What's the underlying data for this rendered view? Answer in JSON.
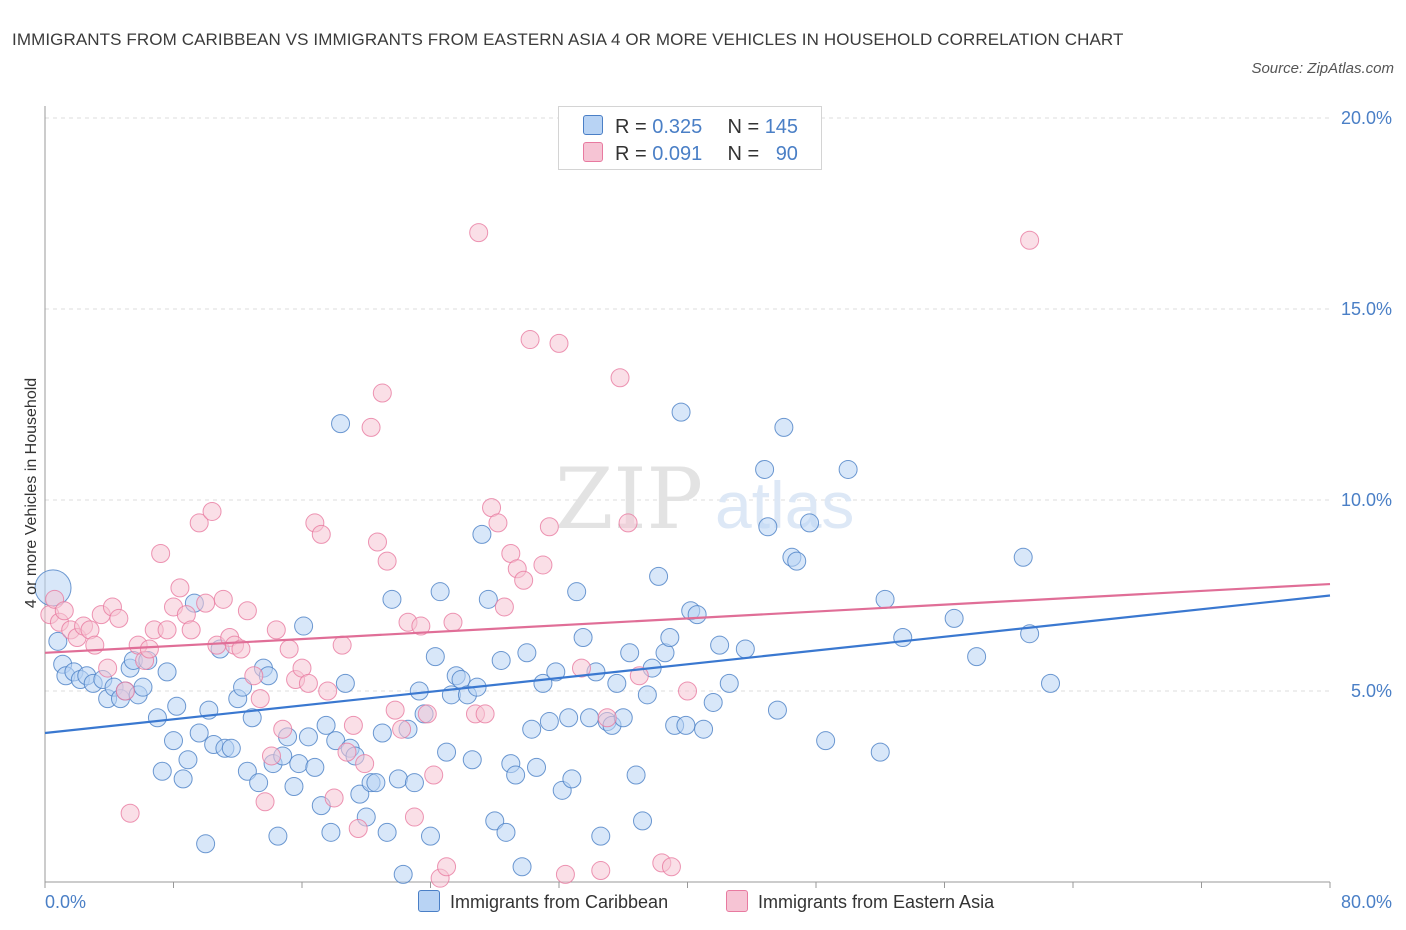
{
  "title": "IMMIGRANTS FROM CARIBBEAN VS IMMIGRANTS FROM EASTERN ASIA 4 OR MORE VEHICLES IN HOUSEHOLD CORRELATION CHART",
  "source": "Source: ZipAtlas.com",
  "watermark": {
    "zip": "ZIP",
    "atlas": "atlas"
  },
  "colors": {
    "blue": "#4a7fc6",
    "blue_fill": "#b8d3f4",
    "blue_line": "#3a78d0",
    "pink": "#e87aa0",
    "pink_fill": "#f6c4d4",
    "pink_line": "#e06e97",
    "grid": "#dcdcdc"
  },
  "legend_top": {
    "rows": [
      {
        "r_label": "R =",
        "r_value": "0.325",
        "n_label": "N =",
        "n_value": "145"
      },
      {
        "r_label": "R =",
        "r_value": "0.091",
        "n_label": "N =",
        "n_value": "90"
      }
    ]
  },
  "legend_bottom": [
    "Immigrants from Caribbean",
    "Immigrants from Eastern Asia"
  ],
  "chart_data": {
    "type": "scatter",
    "ylabel": "4 or more Vehicles in Household",
    "xlim": [
      0,
      80
    ],
    "ylim": [
      0,
      20
    ],
    "x_tick_labels": [
      "0.0%",
      "80.0%"
    ],
    "y_ticks": [
      5,
      10,
      15,
      20
    ],
    "y_tick_labels": [
      "5.0%",
      "10.0%",
      "15.0%",
      "20.0%"
    ],
    "grid": "horizontal dashed",
    "series": [
      {
        "name": "Immigrants from Caribbean",
        "R": 0.325,
        "N": 145,
        "trend": {
          "x": [
            0,
            80
          ],
          "y": [
            3.9,
            7.5
          ]
        },
        "points": [
          [
            0.5,
            7.7
          ],
          [
            0.8,
            6.3
          ],
          [
            1.1,
            5.7
          ],
          [
            1.3,
            5.4
          ],
          [
            1.8,
            5.5
          ],
          [
            2.2,
            5.3
          ],
          [
            2.6,
            5.4
          ],
          [
            3.0,
            5.2
          ],
          [
            3.6,
            5.3
          ],
          [
            3.9,
            4.8
          ],
          [
            4.3,
            5.1
          ],
          [
            4.7,
            4.8
          ],
          [
            5.0,
            5.0
          ],
          [
            5.3,
            5.6
          ],
          [
            5.5,
            5.8
          ],
          [
            5.8,
            4.9
          ],
          [
            6.1,
            5.1
          ],
          [
            6.4,
            5.8
          ],
          [
            7.0,
            4.3
          ],
          [
            7.3,
            2.9
          ],
          [
            7.6,
            5.5
          ],
          [
            8.0,
            3.7
          ],
          [
            8.2,
            4.6
          ],
          [
            8.6,
            2.7
          ],
          [
            8.9,
            3.2
          ],
          [
            9.3,
            7.3
          ],
          [
            9.6,
            3.9
          ],
          [
            10.0,
            1.0
          ],
          [
            10.2,
            4.5
          ],
          [
            10.5,
            3.6
          ],
          [
            10.9,
            6.1
          ],
          [
            11.2,
            3.5
          ],
          [
            11.6,
            3.5
          ],
          [
            12.0,
            4.8
          ],
          [
            12.3,
            5.1
          ],
          [
            12.6,
            2.9
          ],
          [
            12.9,
            4.3
          ],
          [
            13.3,
            2.6
          ],
          [
            13.6,
            5.6
          ],
          [
            13.9,
            5.4
          ],
          [
            14.2,
            3.1
          ],
          [
            14.5,
            1.2
          ],
          [
            14.8,
            3.3
          ],
          [
            15.1,
            3.8
          ],
          [
            15.5,
            2.5
          ],
          [
            15.8,
            3.1
          ],
          [
            16.1,
            6.7
          ],
          [
            16.4,
            3.8
          ],
          [
            16.8,
            3.0
          ],
          [
            17.2,
            2.0
          ],
          [
            17.5,
            4.1
          ],
          [
            17.8,
            1.3
          ],
          [
            18.1,
            3.7
          ],
          [
            18.4,
            12.0
          ],
          [
            18.7,
            5.2
          ],
          [
            19.0,
            3.5
          ],
          [
            19.3,
            3.3
          ],
          [
            19.6,
            2.3
          ],
          [
            20.0,
            1.7
          ],
          [
            20.3,
            2.6
          ],
          [
            20.6,
            2.6
          ],
          [
            21.0,
            3.9
          ],
          [
            21.3,
            1.3
          ],
          [
            21.6,
            7.4
          ],
          [
            22.0,
            2.7
          ],
          [
            22.3,
            0.2
          ],
          [
            22.6,
            4.0
          ],
          [
            23.0,
            2.6
          ],
          [
            23.3,
            5.0
          ],
          [
            23.6,
            4.4
          ],
          [
            24.0,
            1.2
          ],
          [
            24.3,
            5.9
          ],
          [
            24.6,
            7.6
          ],
          [
            25.0,
            3.4
          ],
          [
            25.3,
            4.9
          ],
          [
            25.6,
            5.4
          ],
          [
            25.9,
            5.3
          ],
          [
            26.3,
            4.9
          ],
          [
            26.6,
            3.2
          ],
          [
            26.9,
            5.1
          ],
          [
            27.2,
            9.1
          ],
          [
            27.6,
            7.4
          ],
          [
            28.0,
            1.6
          ],
          [
            28.4,
            5.8
          ],
          [
            28.7,
            1.3
          ],
          [
            29.0,
            3.1
          ],
          [
            29.3,
            2.8
          ],
          [
            29.7,
            0.4
          ],
          [
            30.0,
            6.0
          ],
          [
            30.3,
            4.0
          ],
          [
            30.6,
            3.0
          ],
          [
            31.0,
            5.2
          ],
          [
            31.4,
            4.2
          ],
          [
            31.8,
            5.5
          ],
          [
            32.2,
            2.4
          ],
          [
            32.6,
            4.3
          ],
          [
            32.8,
            2.7
          ],
          [
            33.1,
            7.6
          ],
          [
            33.5,
            6.4
          ],
          [
            33.9,
            4.3
          ],
          [
            34.3,
            5.5
          ],
          [
            34.6,
            1.2
          ],
          [
            35.0,
            4.2
          ],
          [
            35.3,
            4.1
          ],
          [
            35.6,
            5.2
          ],
          [
            36.0,
            4.3
          ],
          [
            36.4,
            6.0
          ],
          [
            36.8,
            2.8
          ],
          [
            37.2,
            1.6
          ],
          [
            37.5,
            4.9
          ],
          [
            37.8,
            5.6
          ],
          [
            38.2,
            8.0
          ],
          [
            38.6,
            6.0
          ],
          [
            38.9,
            6.4
          ],
          [
            39.2,
            4.1
          ],
          [
            39.6,
            12.3
          ],
          [
            39.9,
            4.1
          ],
          [
            40.2,
            7.1
          ],
          [
            40.6,
            7.0
          ],
          [
            41.0,
            4.0
          ],
          [
            41.6,
            4.7
          ],
          [
            42.0,
            6.2
          ],
          [
            42.6,
            5.2
          ],
          [
            43.6,
            6.1
          ],
          [
            44.8,
            10.8
          ],
          [
            45.0,
            9.3
          ],
          [
            45.6,
            4.5
          ],
          [
            46.0,
            11.9
          ],
          [
            46.5,
            8.5
          ],
          [
            46.8,
            8.4
          ],
          [
            47.6,
            9.4
          ],
          [
            48.6,
            3.7
          ],
          [
            50.0,
            10.8
          ],
          [
            52.0,
            3.4
          ],
          [
            52.3,
            7.4
          ],
          [
            53.4,
            6.4
          ],
          [
            56.6,
            6.9
          ],
          [
            58.0,
            5.9
          ],
          [
            60.9,
            8.5
          ],
          [
            61.3,
            6.5
          ],
          [
            62.6,
            5.2
          ]
        ]
      },
      {
        "name": "Immigrants from Eastern Asia",
        "R": 0.091,
        "N": 90,
        "trend": {
          "x": [
            0,
            80
          ],
          "y": [
            6.0,
            7.8
          ]
        },
        "points": [
          [
            0.3,
            7.0
          ],
          [
            0.6,
            7.4
          ],
          [
            0.9,
            6.8
          ],
          [
            1.2,
            7.1
          ],
          [
            1.6,
            6.6
          ],
          [
            2.0,
            6.4
          ],
          [
            2.4,
            6.7
          ],
          [
            2.8,
            6.6
          ],
          [
            3.1,
            6.2
          ],
          [
            3.5,
            7.0
          ],
          [
            3.9,
            5.6
          ],
          [
            4.2,
            7.2
          ],
          [
            4.6,
            6.9
          ],
          [
            5.0,
            5.0
          ],
          [
            5.3,
            1.8
          ],
          [
            5.8,
            6.2
          ],
          [
            6.2,
            5.8
          ],
          [
            6.5,
            6.1
          ],
          [
            6.8,
            6.6
          ],
          [
            7.2,
            8.6
          ],
          [
            7.6,
            6.6
          ],
          [
            8.0,
            7.2
          ],
          [
            8.4,
            7.7
          ],
          [
            8.8,
            7.0
          ],
          [
            9.1,
            6.6
          ],
          [
            9.6,
            9.4
          ],
          [
            10.0,
            7.3
          ],
          [
            10.4,
            9.7
          ],
          [
            10.7,
            6.2
          ],
          [
            11.1,
            7.4
          ],
          [
            11.5,
            6.4
          ],
          [
            11.8,
            6.2
          ],
          [
            12.2,
            6.1
          ],
          [
            12.6,
            7.1
          ],
          [
            13.0,
            5.4
          ],
          [
            13.4,
            4.8
          ],
          [
            13.7,
            2.1
          ],
          [
            14.1,
            3.3
          ],
          [
            14.4,
            6.6
          ],
          [
            14.8,
            4.0
          ],
          [
            15.2,
            6.1
          ],
          [
            15.6,
            5.3
          ],
          [
            16.0,
            5.6
          ],
          [
            16.4,
            5.2
          ],
          [
            16.8,
            9.4
          ],
          [
            17.2,
            9.1
          ],
          [
            17.6,
            5.0
          ],
          [
            18.0,
            2.2
          ],
          [
            18.5,
            6.2
          ],
          [
            18.8,
            3.4
          ],
          [
            19.2,
            4.1
          ],
          [
            19.5,
            1.4
          ],
          [
            19.9,
            3.1
          ],
          [
            20.3,
            11.9
          ],
          [
            20.7,
            8.9
          ],
          [
            21.0,
            12.8
          ],
          [
            21.3,
            8.4
          ],
          [
            21.8,
            4.5
          ],
          [
            22.2,
            4.0
          ],
          [
            22.6,
            6.8
          ],
          [
            23.0,
            1.7
          ],
          [
            23.4,
            6.7
          ],
          [
            23.8,
            4.4
          ],
          [
            24.2,
            2.8
          ],
          [
            24.6,
            0.1
          ],
          [
            25.0,
            0.4
          ],
          [
            25.4,
            6.8
          ],
          [
            26.8,
            4.4
          ],
          [
            27.0,
            17.0
          ],
          [
            27.4,
            4.4
          ],
          [
            27.8,
            9.8
          ],
          [
            28.2,
            9.4
          ],
          [
            28.6,
            7.2
          ],
          [
            29.0,
            8.6
          ],
          [
            29.4,
            8.2
          ],
          [
            29.8,
            7.9
          ],
          [
            30.2,
            14.2
          ],
          [
            31.0,
            8.3
          ],
          [
            31.4,
            9.3
          ],
          [
            32.0,
            14.1
          ],
          [
            32.4,
            0.2
          ],
          [
            33.4,
            5.6
          ],
          [
            34.6,
            0.3
          ],
          [
            35.0,
            4.3
          ],
          [
            35.8,
            13.2
          ],
          [
            36.3,
            9.4
          ],
          [
            37.0,
            5.4
          ],
          [
            38.4,
            0.5
          ],
          [
            39.0,
            0.4
          ],
          [
            40.0,
            5.0
          ],
          [
            61.3,
            16.8
          ]
        ]
      }
    ]
  }
}
